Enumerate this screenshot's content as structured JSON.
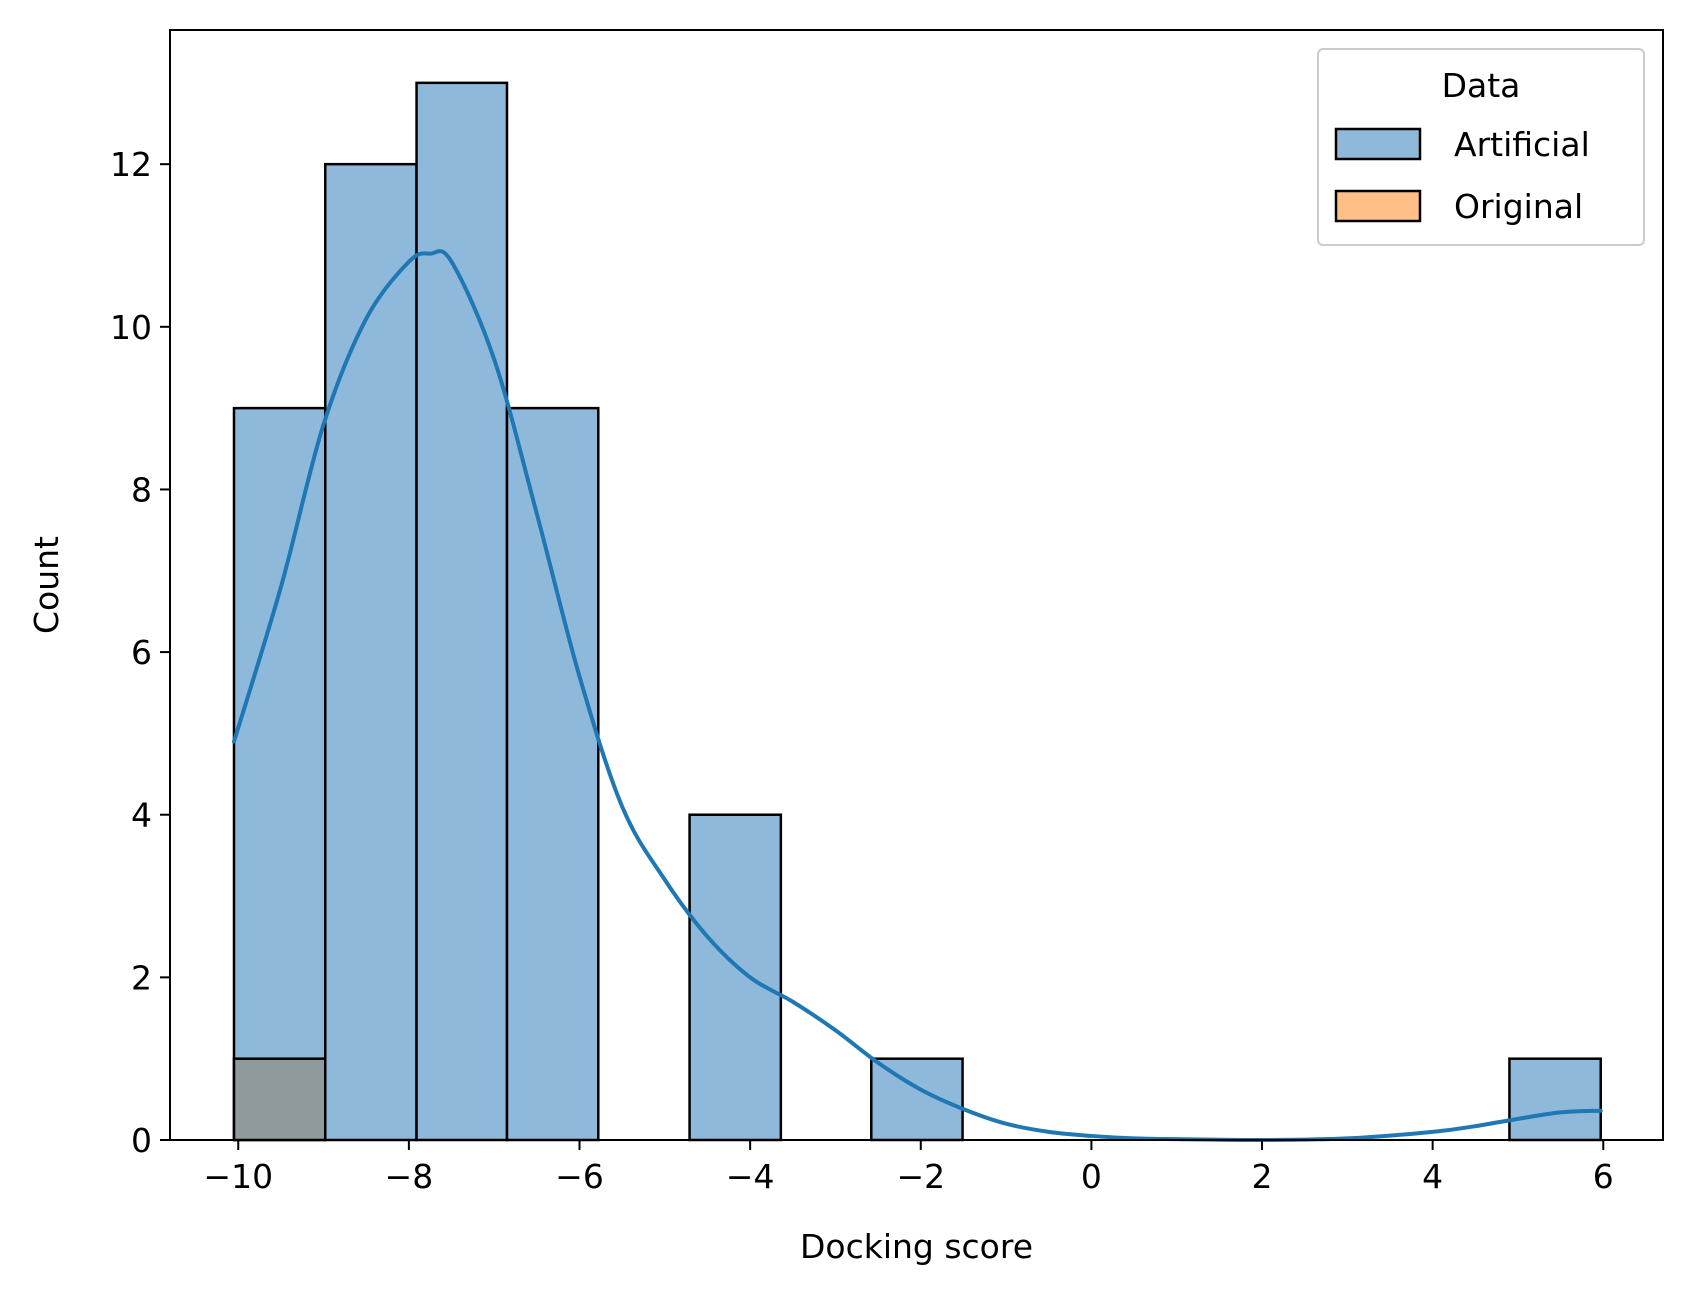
{
  "chart_data": {
    "type": "histogram",
    "xlabel": "Docking score",
    "ylabel": "Count",
    "xlim": [
      -10.8,
      6.7
    ],
    "ylim": [
      0,
      13.65
    ],
    "xticks": [
      -10,
      -8,
      -6,
      -4,
      -2,
      0,
      2,
      4,
      6
    ],
    "xtick_labels": [
      "−10",
      "−8",
      "−6",
      "−4",
      "−2",
      "0",
      "2",
      "4",
      "6"
    ],
    "yticks": [
      0,
      2,
      4,
      6,
      8,
      10,
      12
    ],
    "ytick_labels": [
      "0",
      "2",
      "4",
      "6",
      "8",
      "10",
      "12"
    ],
    "grid": false,
    "bin_edges": [
      -10.05,
      -8.98,
      -7.91,
      -6.85,
      -5.78,
      -4.71,
      -3.64,
      -2.58,
      -1.51,
      -0.44,
      0.63,
      1.7,
      2.76,
      3.83,
      4.9,
      5.97
    ],
    "series": [
      {
        "name": "Artificial",
        "color": "#1f77b4",
        "fill_color": "#8fb9db",
        "counts": [
          9,
          12,
          13,
          9,
          0,
          4,
          0,
          1,
          0,
          0,
          0,
          0,
          0,
          0,
          1
        ]
      },
      {
        "name": "Original",
        "color": "#ff7f0e",
        "fill_color": "#ffbf87",
        "counts": [
          1,
          0,
          0,
          0,
          0,
          0,
          0,
          0,
          0,
          0,
          0,
          0,
          0,
          0,
          0
        ]
      }
    ],
    "overlap_color": "#8e9a9c",
    "kde": {
      "series": "Artificial",
      "color": "#1f77b4",
      "x": [
        -10.05,
        -9.5,
        -9.0,
        -8.5,
        -8.0,
        -7.75,
        -7.5,
        -7.0,
        -6.5,
        -6.0,
        -5.5,
        -5.0,
        -4.5,
        -4.0,
        -3.5,
        -3.0,
        -2.5,
        -2.0,
        -1.5,
        -1.0,
        -0.5,
        0.0,
        0.5,
        1.0,
        2.0,
        3.0,
        4.0,
        4.5,
        5.0,
        5.5,
        5.97
      ],
      "y": [
        4.9,
        6.8,
        8.8,
        10.1,
        10.8,
        10.9,
        10.8,
        9.6,
        7.7,
        5.7,
        4.1,
        3.2,
        2.5,
        2.0,
        1.7,
        1.35,
        0.95,
        0.62,
        0.38,
        0.2,
        0.1,
        0.05,
        0.02,
        0.01,
        0.0,
        0.02,
        0.1,
        0.17,
        0.26,
        0.34,
        0.36
      ]
    },
    "legend": {
      "title": "Data",
      "placement": "top-right",
      "entries": [
        "Artificial",
        "Original"
      ]
    }
  }
}
